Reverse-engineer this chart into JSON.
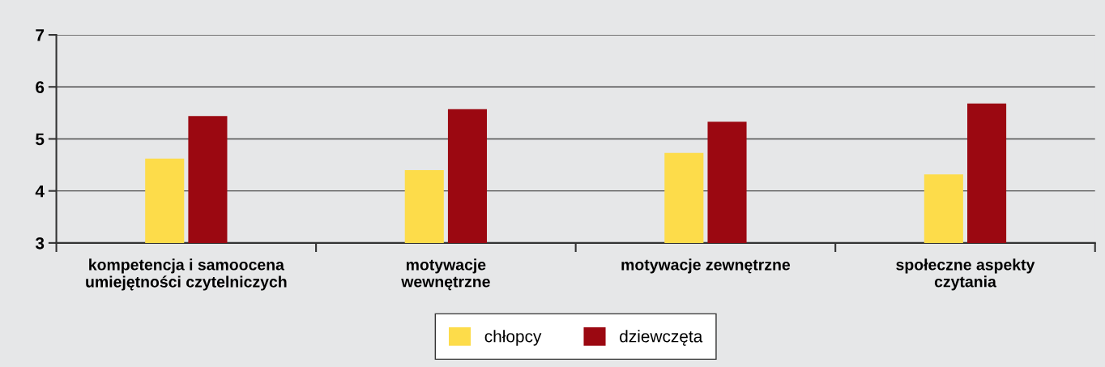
{
  "chart_data": {
    "type": "bar",
    "categories": [
      "kompetencja i samoocena\numiejętności czytelniczych",
      "motywacje\nwewnętrzne",
      "motywacje zewnętrzne",
      "społeczne aspekty\nczytania"
    ],
    "series": [
      {
        "name": "chłopcy",
        "color": "#fddc4a",
        "values": [
          4.62,
          4.4,
          4.73,
          4.32
        ]
      },
      {
        "name": "dziewczęta",
        "color": "#9b0811",
        "values": [
          5.44,
          5.57,
          5.33,
          5.68
        ]
      }
    ],
    "ylim": [
      3,
      7
    ],
    "yticks": [
      3,
      4,
      5,
      6,
      7
    ],
    "grid": "y",
    "legend": "bottom"
  }
}
